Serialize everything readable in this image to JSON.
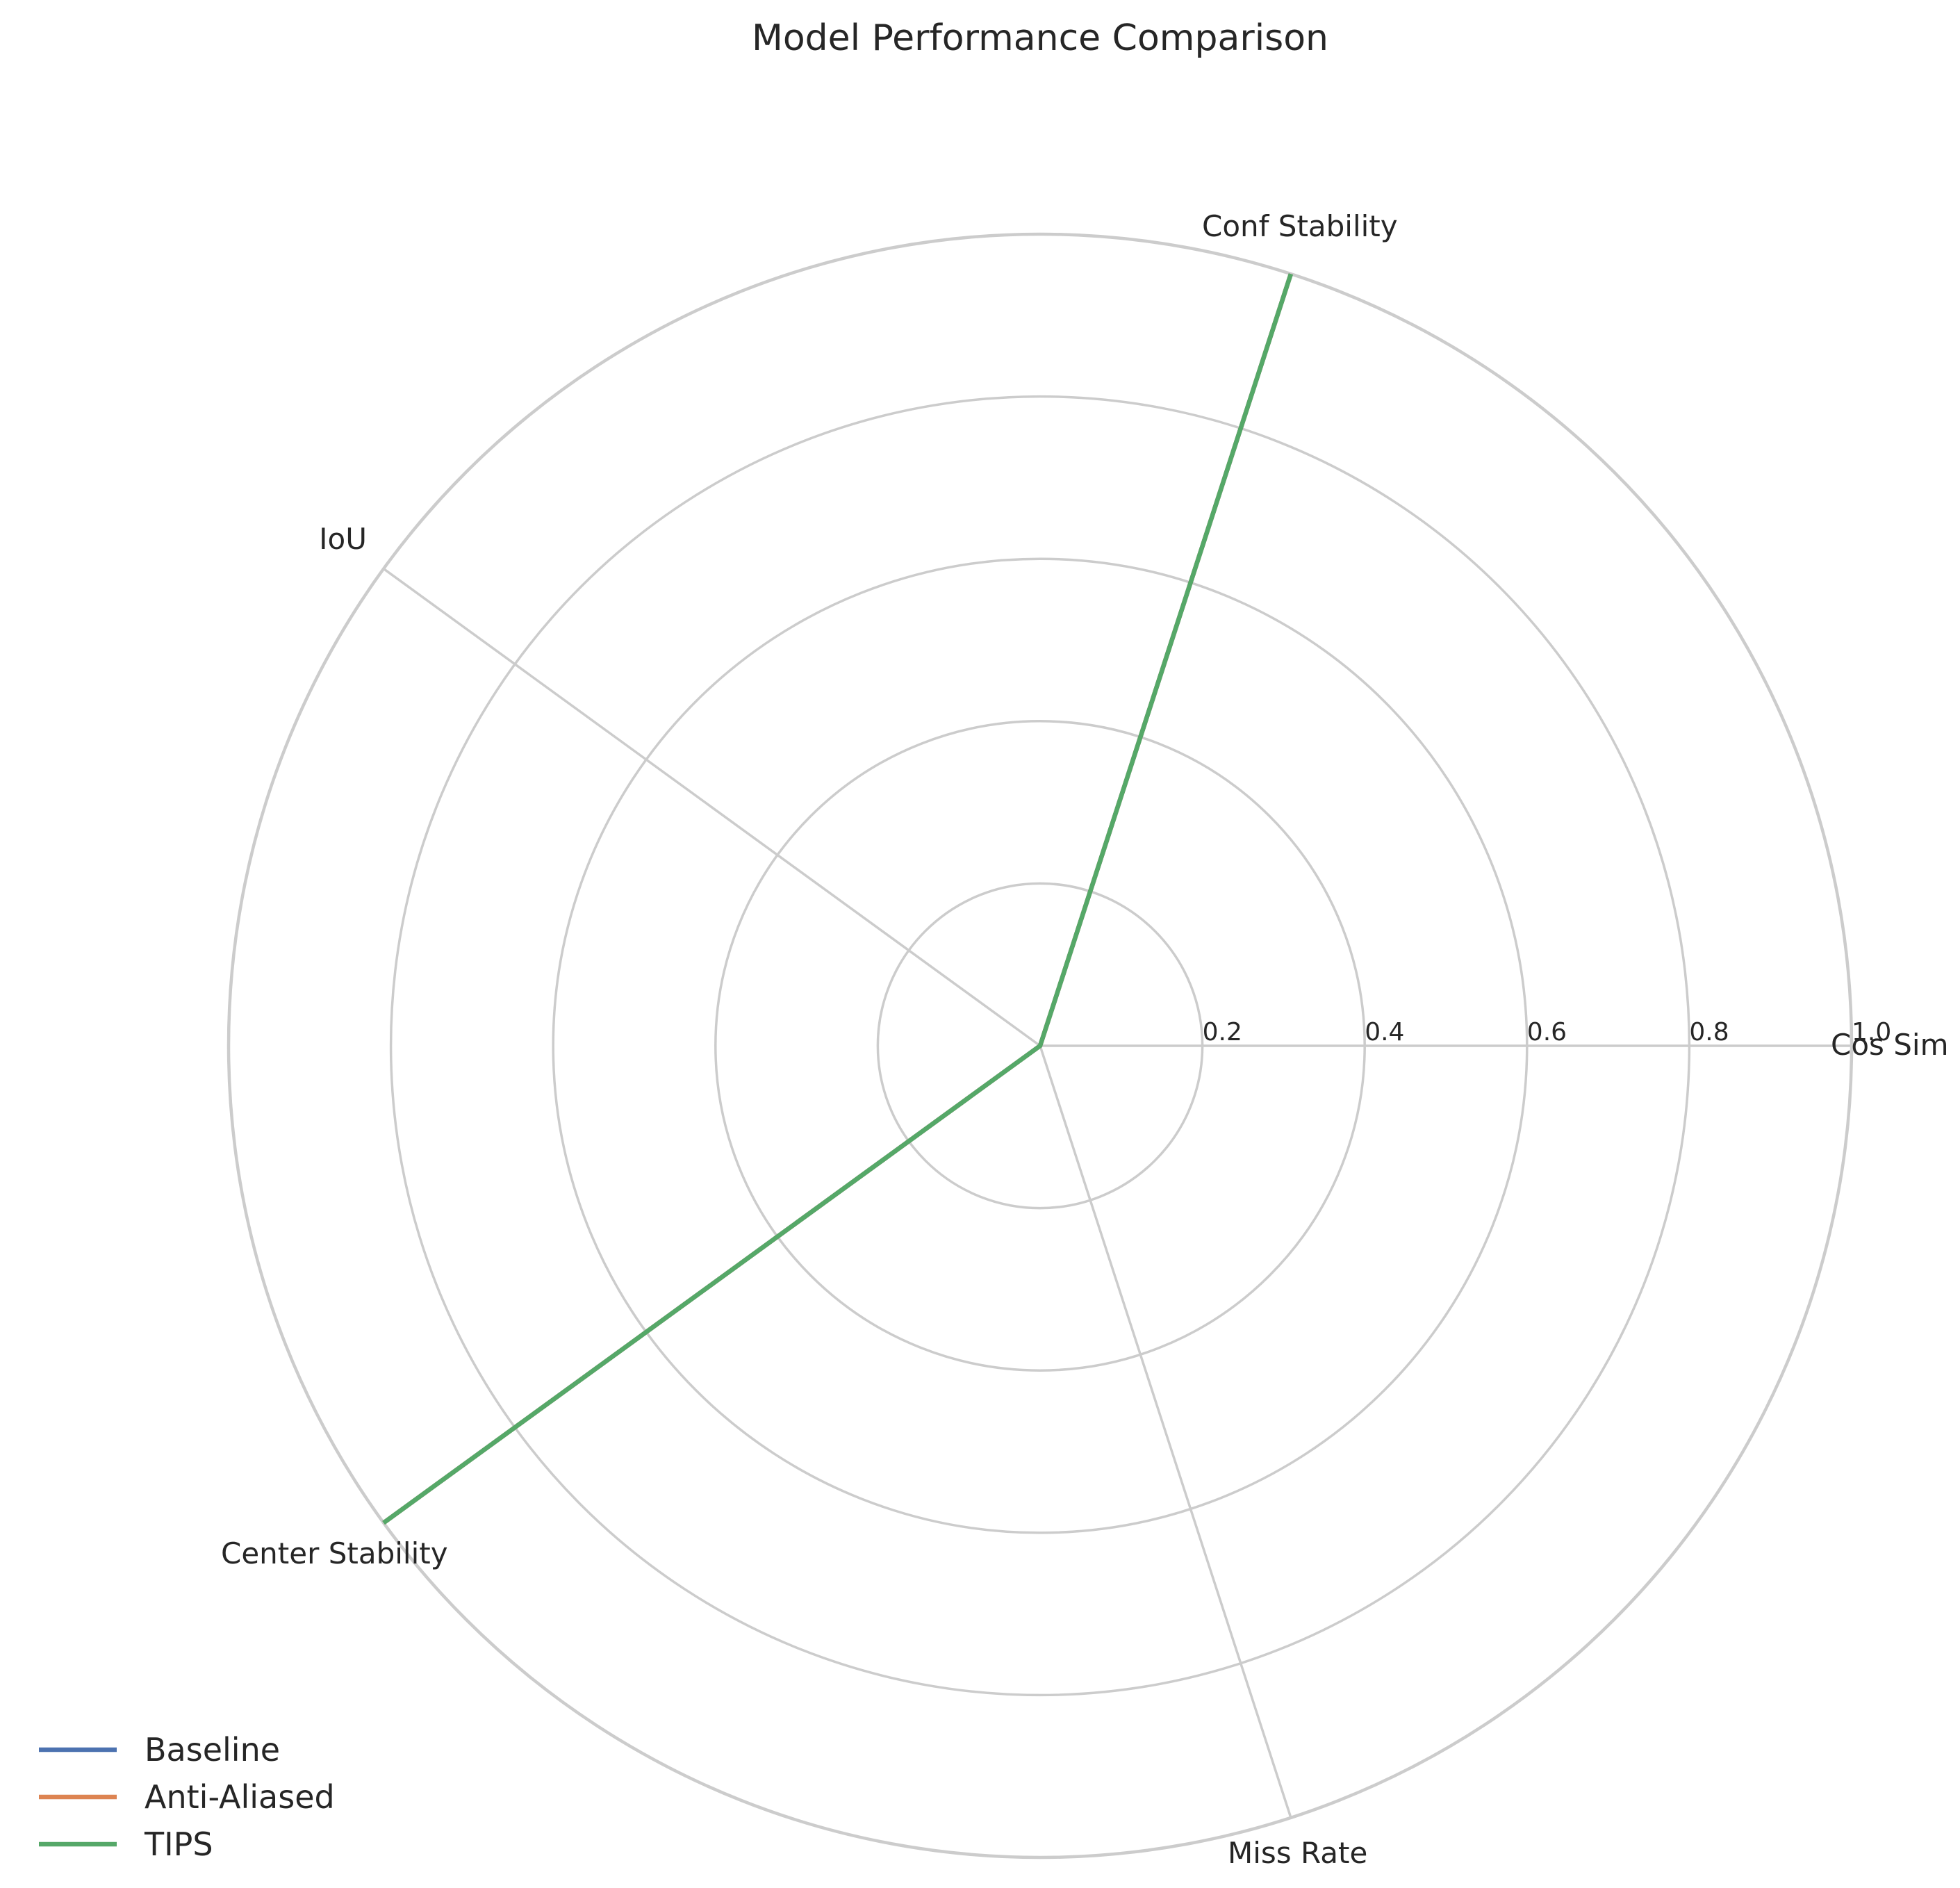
{
  "chart_data": {
    "type": "radar",
    "title": "Model Performance Comparison",
    "categories": [
      "Cos Sim",
      "Conf Stability",
      "IoU",
      "Center Stability",
      "Miss Rate"
    ],
    "rticks": [
      0.2,
      0.4,
      0.6,
      0.8,
      1.0
    ],
    "rtick_labels": [
      "0.2",
      "0.4",
      "0.6",
      "0.8",
      "1.0"
    ],
    "rlim": [
      0,
      1.0
    ],
    "grid": true,
    "legend_position": "bottom-left",
    "series": [
      {
        "name": "Baseline",
        "color": "#4c72b0",
        "values": [
          0,
          1.0,
          0,
          1.0,
          0
        ]
      },
      {
        "name": "Anti-Aliased",
        "color": "#dd8452",
        "values": [
          0,
          1.0,
          0,
          1.0,
          0
        ]
      },
      {
        "name": "TIPS",
        "color": "#55a868",
        "values": [
          0,
          1.0,
          0,
          1.0,
          0
        ]
      }
    ]
  }
}
